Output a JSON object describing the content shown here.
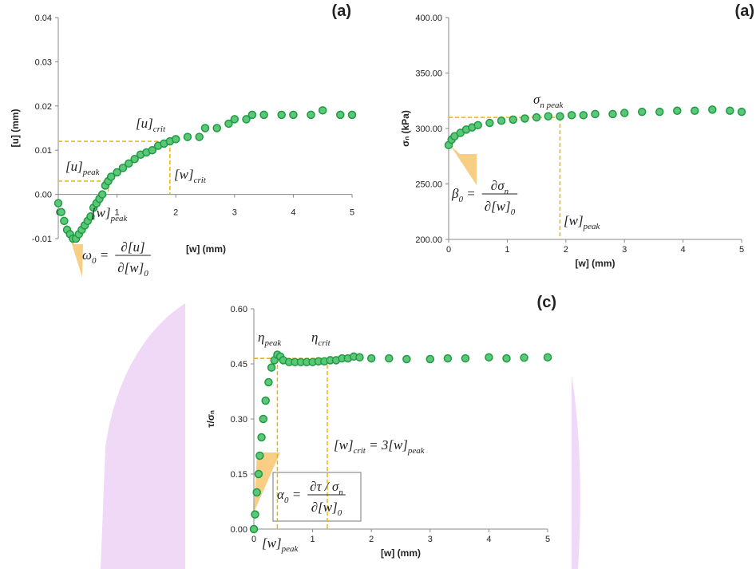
{
  "chart_data": [
    {
      "type": "scatter",
      "title": "(a)",
      "xlabel": "[w] (mm)",
      "ylabel": "[u] (mm)",
      "xlim": [
        0,
        5
      ],
      "xticks": [
        0,
        1,
        2,
        3,
        4,
        5
      ],
      "ylim": [
        -0.01,
        0.04
      ],
      "yticks": [
        -0.01,
        {
          "value": 0,
          "label": "0.00"
        },
        0.01,
        0.02,
        0.03,
        0.04
      ],
      "guide_color": "#f2b300",
      "guides": [
        {
          "x": 0.85,
          "y": 0.003
        },
        {
          "x": 1.9,
          "y": 0.012
        }
      ],
      "series": [
        {
          "color": "#1e9a45",
          "x": [
            0,
            0.05,
            0.1,
            0.15,
            0.2,
            0.25,
            0.3,
            0.35,
            0.4,
            0.45,
            0.5,
            0.55,
            0.6,
            0.65,
            0.7,
            0.75,
            0.8,
            0.85,
            0.9,
            1.0,
            1.1,
            1.2,
            1.3,
            1.4,
            1.5,
            1.6,
            1.7,
            1.8,
            1.9,
            2.0,
            2.2,
            2.4,
            2.5,
            2.7,
            2.9,
            3.0,
            3.2,
            3.3,
            3.5,
            3.8,
            4.0,
            4.3,
            4.5,
            4.8,
            5.0
          ],
          "values": [
            -0.002,
            -0.004,
            -0.006,
            -0.008,
            -0.009,
            -0.01,
            -0.01,
            -0.009,
            -0.008,
            -0.007,
            -0.006,
            -0.005,
            -0.003,
            -0.002,
            -0.001,
            0.0,
            0.002,
            0.003,
            0.004,
            0.005,
            0.006,
            0.007,
            0.008,
            0.009,
            0.0095,
            0.01,
            0.011,
            0.0115,
            0.012,
            0.0125,
            0.013,
            0.013,
            0.015,
            0.015,
            0.016,
            0.017,
            0.017,
            0.018,
            0.018,
            0.018,
            0.018,
            0.018,
            0.019,
            0.018,
            0.018
          ]
        }
      ],
      "annotations": [
        {
          "parts": [
            {
              "text": "[u]",
              "sub": "crit"
            }
          ]
        },
        {
          "parts": [
            {
              "text": "[w]",
              "sub": "crit"
            }
          ]
        },
        {
          "parts": [
            {
              "text": "[u]",
              "sub": "peak"
            }
          ]
        },
        {
          "parts": [
            {
              "text": "[w]",
              "sub": "peak"
            }
          ]
        },
        {
          "lhs": [
            {
              "text": "ω",
              "sub": "0"
            },
            {
              "text": " ="
            }
          ],
          "num": [
            {
              "text": "∂[u]"
            }
          ],
          "den": [
            {
              "text": "∂[w]",
              "sub": "0"
            }
          ]
        }
      ]
    },
    {
      "type": "scatter",
      "title": "(a)",
      "xlabel": "[w] (mm)",
      "ylabel": "σₙ (kPa)",
      "xlim": [
        0,
        5
      ],
      "xticks": [
        0,
        1,
        2,
        3,
        4,
        5
      ],
      "ylim": [
        200,
        400
      ],
      "yticks": [
        {
          "value": 200,
          "label": "200.00"
        },
        {
          "value": 250,
          "label": "250.00"
        },
        {
          "value": 300,
          "label": "300.00"
        },
        {
          "value": 350,
          "label": "350.00"
        },
        {
          "value": 400,
          "label": "400.00"
        }
      ],
      "guide_color": "#f2b300",
      "guides": [
        {
          "x": 1.9,
          "y": 310
        }
      ],
      "series": [
        {
          "color": "#1e9a45",
          "x": [
            0,
            0.05,
            0.1,
            0.2,
            0.3,
            0.4,
            0.5,
            0.7,
            0.9,
            1.1,
            1.3,
            1.5,
            1.7,
            1.9,
            2.1,
            2.3,
            2.5,
            2.8,
            3.0,
            3.3,
            3.6,
            3.9,
            4.2,
            4.5,
            4.8,
            5.0
          ],
          "values": [
            285,
            290,
            293,
            296,
            299,
            301,
            303,
            305,
            307,
            308,
            309,
            310,
            311,
            311,
            312,
            312,
            313,
            313,
            314,
            315,
            315,
            316,
            316,
            317,
            316,
            315
          ]
        }
      ],
      "annotations": [
        {
          "parts": [
            {
              "text": "σ",
              "sub": "n peak"
            }
          ]
        },
        {
          "parts": [
            {
              "text": "[w]",
              "sub": "peak"
            }
          ]
        },
        {
          "lhs": [
            {
              "text": "β",
              "sub": "0"
            },
            {
              "text": " ="
            }
          ],
          "num": [
            {
              "text": "∂σ",
              "sub": "n"
            }
          ],
          "den": [
            {
              "text": "∂[w]",
              "sub": "0"
            }
          ]
        }
      ]
    },
    {
      "type": "scatter",
      "title": "(c)",
      "xlabel": "[w] (mm)",
      "ylabel": "τ/σₙ",
      "xlim": [
        0,
        5
      ],
      "xticks": [
        0,
        1,
        2,
        3,
        4,
        5
      ],
      "ylim": [
        0,
        0.6
      ],
      "yticks": [
        {
          "value": 0,
          "label": "0.00"
        },
        0.15,
        {
          "value": 0.3,
          "label": "0.30"
        },
        0.45,
        {
          "value": 0.6,
          "label": "0.60"
        }
      ],
      "guide_color": "#f2b300",
      "guides": [
        {
          "x": 0.4,
          "y": 0.465
        },
        {
          "x": 1.25,
          "y": 0.465
        }
      ],
      "series": [
        {
          "color": "#1e9a45",
          "x": [
            0,
            0.02,
            0.05,
            0.08,
            0.1,
            0.13,
            0.16,
            0.2,
            0.25,
            0.3,
            0.35,
            0.4,
            0.45,
            0.5,
            0.6,
            0.7,
            0.8,
            0.9,
            1.0,
            1.1,
            1.2,
            1.3,
            1.4,
            1.5,
            1.6,
            1.7,
            1.8,
            2.0,
            2.3,
            2.6,
            3.0,
            3.3,
            3.6,
            4.0,
            4.3,
            4.6,
            5.0
          ],
          "values": [
            0,
            0.04,
            0.1,
            0.15,
            0.2,
            0.25,
            0.3,
            0.35,
            0.4,
            0.44,
            0.46,
            0.475,
            0.47,
            0.46,
            0.455,
            0.455,
            0.455,
            0.455,
            0.455,
            0.457,
            0.457,
            0.46,
            0.46,
            0.465,
            0.465,
            0.47,
            0.468,
            0.465,
            0.465,
            0.463,
            0.463,
            0.465,
            0.465,
            0.468,
            0.465,
            0.467,
            0.468
          ]
        }
      ],
      "annotations": [
        {
          "parts": [
            {
              "text": "η",
              "sub": "peak"
            }
          ]
        },
        {
          "parts": [
            {
              "text": "η",
              "sub": "crit"
            }
          ]
        },
        {
          "parts": [
            {
              "text": "[w]",
              "sub": "crit"
            },
            {
              "text": " = 3[w]",
              "sub": "peak"
            }
          ]
        },
        {
          "parts": [
            {
              "text": "[w]",
              "sub": "peak"
            }
          ]
        },
        {
          "lhs": [
            {
              "text": "α",
              "sub": "0"
            },
            {
              "text": " ="
            }
          ],
          "num": [
            {
              "text": "∂τ / σ",
              "sub": "n"
            }
          ],
          "den": [
            {
              "text": "∂[w]",
              "sub": "0"
            }
          ]
        }
      ]
    }
  ]
}
